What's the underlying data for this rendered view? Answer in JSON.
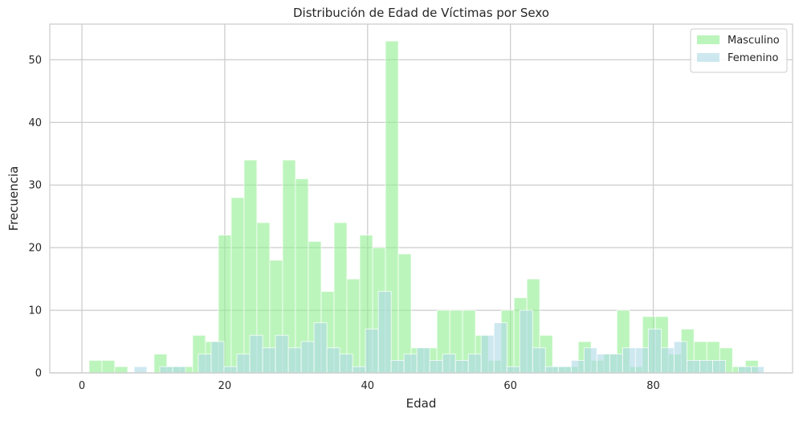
{
  "chart_data": {
    "type": "bar",
    "title": "Distribución de Edad de Víctimas por Sexo",
    "xlabel": "Edad",
    "ylabel": "Frecuencia",
    "xlim": [
      -4.5,
      99.5
    ],
    "ylim": [
      0,
      55.7
    ],
    "xticks": [
      0,
      20,
      40,
      60,
      80
    ],
    "yticks": [
      0,
      10,
      20,
      30,
      40,
      50
    ],
    "grid": true,
    "legend_position": "top-right",
    "series": [
      {
        "name": "Masculino",
        "color": "#90ee90",
        "bins": [
          [
            1,
            2.8,
            2
          ],
          [
            2.8,
            4.6,
            2
          ],
          [
            4.6,
            6.4,
            1
          ],
          [
            10.1,
            11.9,
            3
          ],
          [
            11.9,
            13.7,
            1
          ],
          [
            13.7,
            15.5,
            1
          ],
          [
            15.5,
            17.3,
            6
          ],
          [
            17.3,
            19.1,
            5
          ],
          [
            19.1,
            20.9,
            22
          ],
          [
            20.9,
            22.7,
            28
          ],
          [
            22.7,
            24.5,
            34
          ],
          [
            24.5,
            26.3,
            24
          ],
          [
            26.3,
            28.1,
            18
          ],
          [
            28.1,
            29.9,
            34
          ],
          [
            29.9,
            31.7,
            31
          ],
          [
            31.7,
            33.5,
            21
          ],
          [
            33.5,
            35.3,
            13
          ],
          [
            35.3,
            37.1,
            24
          ],
          [
            37.1,
            38.9,
            15
          ],
          [
            38.9,
            40.7,
            22
          ],
          [
            40.7,
            42.5,
            20
          ],
          [
            42.5,
            44.3,
            53
          ],
          [
            44.3,
            46.1,
            19
          ],
          [
            46.1,
            47.9,
            4
          ],
          [
            47.9,
            49.7,
            4
          ],
          [
            49.7,
            51.5,
            10
          ],
          [
            51.5,
            53.3,
            10
          ],
          [
            53.3,
            55.1,
            10
          ],
          [
            55.1,
            56.9,
            6
          ],
          [
            56.9,
            58.7,
            2
          ],
          [
            58.7,
            60.5,
            10
          ],
          [
            60.5,
            62.3,
            12
          ],
          [
            62.3,
            64.1,
            15
          ],
          [
            64.1,
            65.9,
            6
          ],
          [
            65.9,
            67.7,
            1
          ],
          [
            67.7,
            69.5,
            1
          ],
          [
            69.5,
            71.3,
            5
          ],
          [
            71.3,
            73.1,
            2
          ],
          [
            73.1,
            74.9,
            3
          ],
          [
            74.9,
            76.7,
            10
          ],
          [
            76.7,
            78.5,
            1
          ],
          [
            78.5,
            80.3,
            9
          ],
          [
            80.3,
            82.1,
            9
          ],
          [
            82.1,
            83.9,
            3
          ],
          [
            83.9,
            85.7,
            7
          ],
          [
            85.7,
            87.5,
            5
          ],
          [
            87.5,
            89.3,
            5
          ],
          [
            89.3,
            91.1,
            4
          ],
          [
            91.1,
            92.9,
            1
          ],
          [
            92.9,
            94.7,
            2
          ]
        ]
      },
      {
        "name": "Femenino",
        "color": "#add8e6",
        "bins": [
          [
            7.3,
            9.1,
            1
          ],
          [
            10.9,
            12.7,
            1
          ],
          [
            12.7,
            14.5,
            1
          ],
          [
            16.3,
            18.1,
            3
          ],
          [
            18.1,
            19.9,
            5
          ],
          [
            19.9,
            21.7,
            1
          ],
          [
            21.7,
            23.5,
            3
          ],
          [
            23.5,
            25.3,
            6
          ],
          [
            25.3,
            27.1,
            4
          ],
          [
            27.1,
            28.9,
            6
          ],
          [
            28.9,
            30.7,
            4
          ],
          [
            30.7,
            32.5,
            5
          ],
          [
            32.5,
            34.3,
            8
          ],
          [
            34.3,
            36.1,
            4
          ],
          [
            36.1,
            37.9,
            3
          ],
          [
            37.9,
            39.7,
            1
          ],
          [
            39.7,
            41.5,
            7
          ],
          [
            41.5,
            43.3,
            13
          ],
          [
            43.3,
            45.1,
            2
          ],
          [
            45.1,
            46.9,
            3
          ],
          [
            46.9,
            48.7,
            4
          ],
          [
            48.7,
            50.5,
            2
          ],
          [
            50.5,
            52.3,
            3
          ],
          [
            52.3,
            54.1,
            2
          ],
          [
            54.1,
            55.9,
            3
          ],
          [
            55.9,
            57.7,
            6
          ],
          [
            57.7,
            59.5,
            8
          ],
          [
            59.5,
            61.3,
            1
          ],
          [
            61.3,
            63.1,
            10
          ],
          [
            63.1,
            64.9,
            4
          ],
          [
            64.9,
            66.7,
            1
          ],
          [
            66.7,
            68.5,
            1
          ],
          [
            68.5,
            70.3,
            2
          ],
          [
            70.3,
            72.1,
            4
          ],
          [
            72.1,
            73.9,
            3
          ],
          [
            73.9,
            75.7,
            3
          ],
          [
            75.7,
            77.5,
            4
          ],
          [
            77.5,
            79.3,
            4
          ],
          [
            79.3,
            81.1,
            7
          ],
          [
            81.1,
            82.9,
            4
          ],
          [
            82.9,
            84.7,
            5
          ],
          [
            84.7,
            86.5,
            2
          ],
          [
            86.5,
            88.3,
            2
          ],
          [
            88.3,
            90.1,
            2
          ],
          [
            91.9,
            93.7,
            1
          ],
          [
            93.7,
            95.5,
            1
          ]
        ]
      }
    ]
  }
}
